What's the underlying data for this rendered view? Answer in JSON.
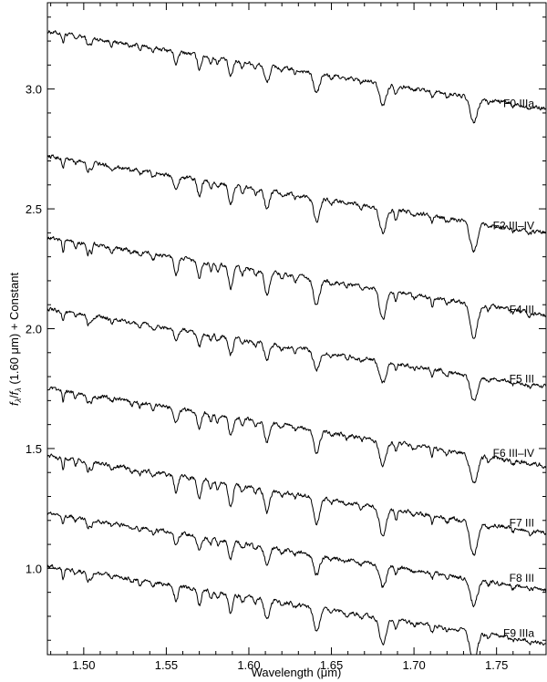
{
  "chart_data": {
    "type": "line",
    "title": "",
    "xlabel": "Wavelength (μm)",
    "ylabel_parts": {
      "f1": "f",
      "sub1": "λ",
      "slash": "/",
      "f2": "f",
      "sub2": "λ",
      "rest": " (1.60 μm) + Constant"
    },
    "xlim": [
      1.478,
      1.78
    ],
    "ylim": [
      0.64,
      3.36
    ],
    "x_ticks": [
      "1.50",
      "1.55",
      "1.60",
      "1.65",
      "1.70",
      "1.75"
    ],
    "x_tick_values": [
      1.5,
      1.55,
      1.6,
      1.65,
      1.7,
      1.75
    ],
    "x_minor_step": 0.01,
    "y_ticks": [
      "1.0",
      "1.5",
      "2.0",
      "2.5",
      "3.0"
    ],
    "y_tick_values": [
      1.0,
      1.5,
      2.0,
      2.5,
      3.0
    ],
    "y_minor_step": 0.1,
    "grid": false,
    "legend": "none",
    "continuum_slope_per_um": -1.07,
    "series": [
      {
        "name": "F0 IIIa",
        "value_at_1_60": 3.11,
        "label_y": 2.94
      },
      {
        "name": "F2 III–IV",
        "value_at_1_60": 2.59,
        "label_y": 2.43
      },
      {
        "name": "F4 III",
        "value_at_1_60": 2.25,
        "label_y": 2.08
      },
      {
        "name": "F5 III",
        "value_at_1_60": 1.95,
        "label_y": 1.79
      },
      {
        "name": "F6 III–IV",
        "value_at_1_60": 1.62,
        "label_y": 1.48
      },
      {
        "name": "F7 III",
        "value_at_1_60": 1.34,
        "label_y": 1.19
      },
      {
        "name": "F8 III",
        "value_at_1_60": 1.1,
        "label_y": 0.96
      },
      {
        "name": "F9 IIIa",
        "value_at_1_60": 0.88,
        "label_y": 0.73
      }
    ],
    "absorption_lines": [
      {
        "x": 1.4875,
        "depth": 0.05,
        "width": 0.0006
      },
      {
        "x": 1.495,
        "depth": 0.022,
        "width": 0.0007
      },
      {
        "x": 1.5025,
        "depth": 0.045,
        "width": 0.0007
      },
      {
        "x": 1.5045,
        "depth": 0.04,
        "width": 0.0007
      },
      {
        "x": 1.517,
        "depth": 0.02,
        "width": 0.0008
      },
      {
        "x": 1.529,
        "depth": 0.018,
        "width": 0.0008
      },
      {
        "x": 1.534,
        "depth": 0.02,
        "width": 0.0008
      },
      {
        "x": 1.542,
        "depth": 0.025,
        "width": 0.0009
      },
      {
        "x": 1.556,
        "depth": 0.07,
        "width": 0.0012
      },
      {
        "x": 1.57,
        "depth": 0.075,
        "width": 0.0012
      },
      {
        "x": 1.577,
        "depth": 0.035,
        "width": 0.0008
      },
      {
        "x": 1.581,
        "depth": 0.03,
        "width": 0.0008
      },
      {
        "x": 1.589,
        "depth": 0.095,
        "width": 0.0013
      },
      {
        "x": 1.596,
        "depth": 0.03,
        "width": 0.0009
      },
      {
        "x": 1.604,
        "depth": 0.025,
        "width": 0.0009
      },
      {
        "x": 1.611,
        "depth": 0.095,
        "width": 0.0015
      },
      {
        "x": 1.62,
        "depth": 0.02,
        "width": 0.0009
      },
      {
        "x": 1.628,
        "depth": 0.02,
        "width": 0.0009
      },
      {
        "x": 1.641,
        "depth": 0.11,
        "width": 0.0018
      },
      {
        "x": 1.65,
        "depth": 0.02,
        "width": 0.0009
      },
      {
        "x": 1.659,
        "depth": 0.018,
        "width": 0.0009
      },
      {
        "x": 1.668,
        "depth": 0.018,
        "width": 0.0009
      },
      {
        "x": 1.6811,
        "depth": 0.12,
        "width": 0.002
      },
      {
        "x": 1.689,
        "depth": 0.045,
        "width": 0.0008
      },
      {
        "x": 1.7,
        "depth": 0.018,
        "width": 0.0009
      },
      {
        "x": 1.711,
        "depth": 0.035,
        "width": 0.0007
      },
      {
        "x": 1.72,
        "depth": 0.02,
        "width": 0.0009
      },
      {
        "x": 1.7362,
        "depth": 0.14,
        "width": 0.0022
      },
      {
        "x": 1.745,
        "depth": 0.02,
        "width": 0.0009
      },
      {
        "x": 1.76,
        "depth": 0.018,
        "width": 0.0009
      },
      {
        "x": 1.77,
        "depth": 0.015,
        "width": 0.0009
      }
    ]
  }
}
